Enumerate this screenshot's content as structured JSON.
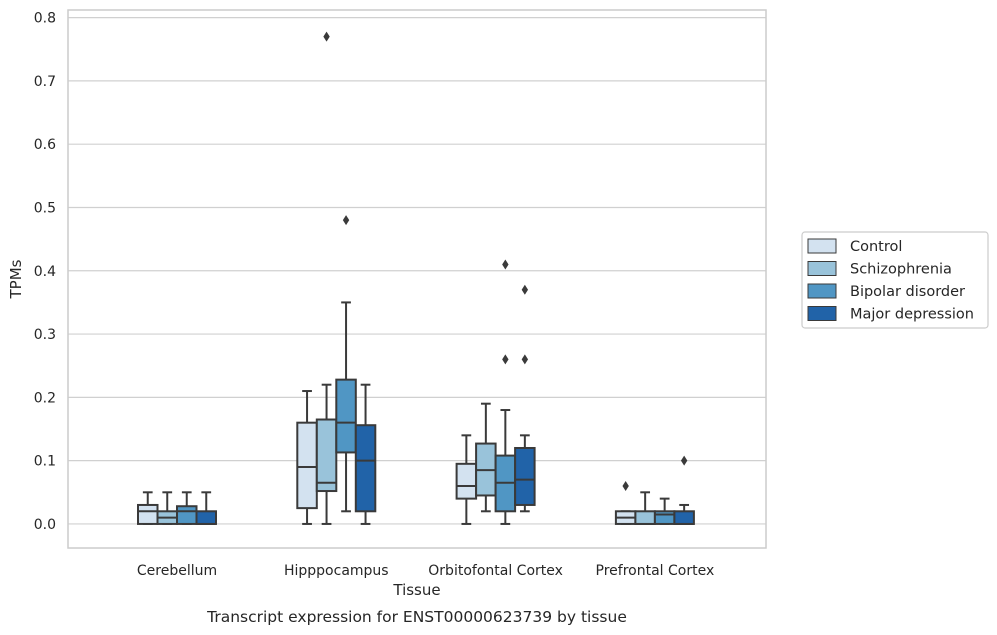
{
  "chart_data": {
    "type": "box",
    "caption": "Transcript expression for ENST00000623739 by tissue",
    "xlabel": "Tissue",
    "ylabel": "TPMs",
    "ylim": [
      -0.038,
      0.812
    ],
    "yticks": [
      0.0,
      0.1,
      0.2,
      0.3,
      0.4,
      0.5,
      0.6,
      0.7,
      0.8
    ],
    "ytick_labels": [
      "0.0",
      "0.1",
      "0.2",
      "0.3",
      "0.4",
      "0.5",
      "0.6",
      "0.7",
      "0.8"
    ],
    "grid": "horizontal",
    "legend_position": "right",
    "categories": [
      "Cerebellum",
      "Hipppocampus",
      "Orbitofontal Cortex",
      "Prefrontal Cortex"
    ],
    "series": [
      {
        "name": "Control",
        "color": "#d3e2f0",
        "boxes": [
          {
            "whisker_low": 0.0,
            "q1": 0.0,
            "median": 0.02,
            "q3": 0.03,
            "whisker_high": 0.05,
            "outliers": []
          },
          {
            "whisker_low": 0.0,
            "q1": 0.025,
            "median": 0.09,
            "q3": 0.16,
            "whisker_high": 0.21,
            "outliers": []
          },
          {
            "whisker_low": 0.0,
            "q1": 0.04,
            "median": 0.06,
            "q3": 0.095,
            "whisker_high": 0.14,
            "outliers": []
          },
          {
            "whisker_low": 0.0,
            "q1": 0.0,
            "median": 0.01,
            "q3": 0.02,
            "whisker_high": 0.02,
            "outliers": [
              0.06
            ]
          }
        ]
      },
      {
        "name": "Schizophrenia",
        "color": "#99c3da",
        "boxes": [
          {
            "whisker_low": 0.0,
            "q1": 0.0,
            "median": 0.01,
            "q3": 0.02,
            "whisker_high": 0.05,
            "outliers": []
          },
          {
            "whisker_low": 0.0,
            "q1": 0.052,
            "median": 0.065,
            "q3": 0.165,
            "whisker_high": 0.22,
            "outliers": [
              0.77
            ]
          },
          {
            "whisker_low": 0.02,
            "q1": 0.045,
            "median": 0.085,
            "q3": 0.127,
            "whisker_high": 0.19,
            "outliers": []
          },
          {
            "whisker_low": 0.0,
            "q1": 0.0,
            "median": 0.0,
            "q3": 0.02,
            "whisker_high": 0.05,
            "outliers": []
          }
        ]
      },
      {
        "name": "Bipolar disorder",
        "color": "#5096c4",
        "boxes": [
          {
            "whisker_low": 0.0,
            "q1": 0.0,
            "median": 0.02,
            "q3": 0.028,
            "whisker_high": 0.05,
            "outliers": []
          },
          {
            "whisker_low": 0.02,
            "q1": 0.113,
            "median": 0.16,
            "q3": 0.228,
            "whisker_high": 0.35,
            "outliers": [
              0.48
            ]
          },
          {
            "whisker_low": 0.0,
            "q1": 0.02,
            "median": 0.065,
            "q3": 0.108,
            "whisker_high": 0.18,
            "outliers": [
              0.26,
              0.41
            ]
          },
          {
            "whisker_low": 0.0,
            "q1": 0.0,
            "median": 0.015,
            "q3": 0.02,
            "whisker_high": 0.04,
            "outliers": []
          }
        ]
      },
      {
        "name": "Major depression",
        "color": "#2163a8",
        "boxes": [
          {
            "whisker_low": 0.0,
            "q1": 0.0,
            "median": 0.0,
            "q3": 0.02,
            "whisker_high": 0.05,
            "outliers": []
          },
          {
            "whisker_low": 0.0,
            "q1": 0.02,
            "median": 0.1,
            "q3": 0.156,
            "whisker_high": 0.22,
            "outliers": []
          },
          {
            "whisker_low": 0.02,
            "q1": 0.03,
            "median": 0.07,
            "q3": 0.12,
            "whisker_high": 0.14,
            "outliers": [
              0.26,
              0.37
            ]
          },
          {
            "whisker_low": 0.0,
            "q1": 0.0,
            "median": 0.0,
            "q3": 0.02,
            "whisker_high": 0.03,
            "outliers": [
              0.1
            ]
          }
        ]
      }
    ],
    "colors": {
      "grid": "#d0d0d0",
      "spine": "#cccccc",
      "box_edge": "#3a3a3a",
      "legend_frame": "#cccccc"
    }
  }
}
